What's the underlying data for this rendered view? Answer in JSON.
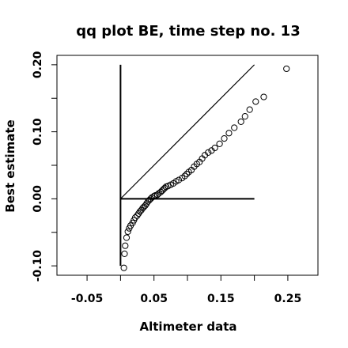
{
  "chart_data": {
    "type": "scatter",
    "title": "qq plot BE, time step no. 13",
    "xlabel": "Altimeter data",
    "ylabel": "Best estimate",
    "xlim": [
      -0.095,
      0.295
    ],
    "ylim": [
      -0.114,
      0.214
    ],
    "x_ticks": [
      {
        "value": -0.05,
        "label": "-0.05"
      },
      {
        "value": 0.05,
        "label": "0.05"
      },
      {
        "value": 0.15,
        "label": "0.15"
      },
      {
        "value": 0.25,
        "label": "0.25"
      }
    ],
    "x_minor_ticks": [
      0.0,
      0.1,
      0.2
    ],
    "y_ticks": [
      {
        "value": -0.1,
        "label": "-0.10"
      },
      {
        "value": 0.0,
        "label": "0.00"
      },
      {
        "value": 0.1,
        "label": "0.10"
      },
      {
        "value": 0.2,
        "label": "0.20"
      }
    ],
    "y_minor_ticks": [
      -0.05,
      0.05,
      0.15
    ],
    "reference_lines": [
      {
        "x": [
          0.0,
          0.2
        ],
        "y": [
          0.0,
          0.2
        ]
      },
      {
        "x": [
          0.0,
          0.2
        ],
        "y": [
          0.0,
          0.0
        ]
      },
      {
        "x": [
          0.0,
          0.0
        ],
        "y": [
          -0.1,
          0.2
        ]
      }
    ],
    "points": [
      [
        0.005,
        -0.103
      ],
      [
        0.006,
        -0.082
      ],
      [
        0.007,
        -0.07
      ],
      [
        0.009,
        -0.058
      ],
      [
        0.011,
        -0.049
      ],
      [
        0.013,
        -0.044
      ],
      [
        0.015,
        -0.04
      ],
      [
        0.018,
        -0.036
      ],
      [
        0.02,
        -0.032
      ],
      [
        0.022,
        -0.028
      ],
      [
        0.025,
        -0.025
      ],
      [
        0.027,
        -0.022
      ],
      [
        0.029,
        -0.019
      ],
      [
        0.031,
        -0.017
      ],
      [
        0.033,
        -0.014
      ],
      [
        0.035,
        -0.012
      ],
      [
        0.037,
        -0.01
      ],
      [
        0.039,
        -0.007
      ],
      [
        0.041,
        -0.004
      ],
      [
        0.043,
        -0.002
      ],
      [
        0.045,
        0.0
      ],
      [
        0.047,
        0.002
      ],
      [
        0.05,
        0.004
      ],
      [
        0.052,
        0.005
      ],
      [
        0.055,
        0.006
      ],
      [
        0.057,
        0.008
      ],
      [
        0.06,
        0.01
      ],
      [
        0.062,
        0.012
      ],
      [
        0.064,
        0.014
      ],
      [
        0.066,
        0.016
      ],
      [
        0.068,
        0.018
      ],
      [
        0.071,
        0.019
      ],
      [
        0.075,
        0.021
      ],
      [
        0.079,
        0.023
      ],
      [
        0.083,
        0.026
      ],
      [
        0.087,
        0.028
      ],
      [
        0.092,
        0.031
      ],
      [
        0.096,
        0.034
      ],
      [
        0.099,
        0.037
      ],
      [
        0.102,
        0.04
      ],
      [
        0.106,
        0.043
      ],
      [
        0.11,
        0.048
      ],
      [
        0.114,
        0.052
      ],
      [
        0.118,
        0.055
      ],
      [
        0.122,
        0.06
      ],
      [
        0.126,
        0.065
      ],
      [
        0.131,
        0.069
      ],
      [
        0.136,
        0.072
      ],
      [
        0.141,
        0.076
      ],
      [
        0.148,
        0.082
      ],
      [
        0.155,
        0.09
      ],
      [
        0.162,
        0.098
      ],
      [
        0.17,
        0.106
      ],
      [
        0.18,
        0.115
      ],
      [
        0.186,
        0.123
      ],
      [
        0.193,
        0.133
      ],
      [
        0.202,
        0.145
      ],
      [
        0.214,
        0.152
      ],
      [
        0.248,
        0.194
      ]
    ]
  }
}
